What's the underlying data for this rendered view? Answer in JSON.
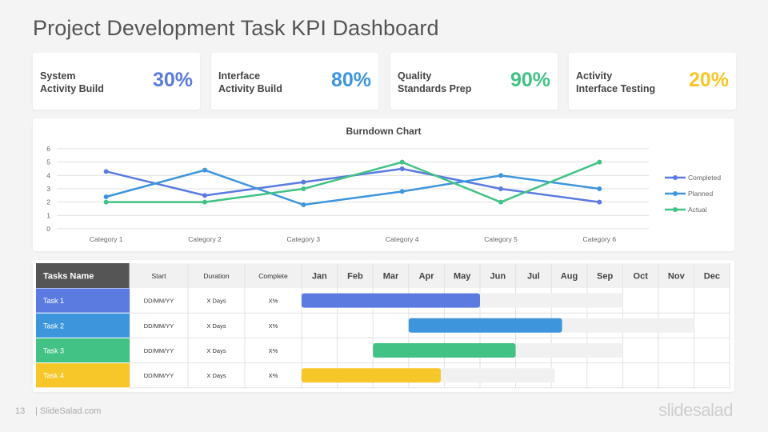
{
  "title": "Project Development Task KPI Dashboard",
  "kpis": [
    {
      "line1": "System",
      "line2": "Activity Build",
      "value": "30%",
      "color": "#5b7be0"
    },
    {
      "line1": "Interface",
      "line2": "Activity Build",
      "value": "80%",
      "color": "#3d95dc"
    },
    {
      "line1": "Quality",
      "line2": "Standards Prep",
      "value": "90%",
      "color": "#42c284"
    },
    {
      "line1": "Activity",
      "line2": "Interface Testing",
      "value": "20%",
      "color": "#f7c628"
    }
  ],
  "chart_data": {
    "type": "line",
    "title": "Burndown  Chart",
    "categories": [
      "Category 1",
      "Category 2",
      "Category 3",
      "Category 4",
      "Category 5",
      "Category 6"
    ],
    "ylim": [
      0,
      6
    ],
    "yticks": [
      "0",
      "1",
      "2",
      "3",
      "4",
      "5",
      "6"
    ],
    "grid": true,
    "legend_position": "right",
    "series": [
      {
        "name": "Completed",
        "values": [
          4.3,
          2.5,
          3.5,
          4.5,
          3,
          2
        ],
        "color": "#5b7be0"
      },
      {
        "name": "Planned",
        "values": [
          2.4,
          4.4,
          1.8,
          2.8,
          4,
          3
        ],
        "color": "#3d95dc"
      },
      {
        "name": "Actual",
        "values": [
          2,
          2,
          3,
          5,
          2,
          5
        ],
        "color": "#42c284"
      }
    ]
  },
  "gantt": {
    "headers": {
      "task": "Tasks Name",
      "start": "Start",
      "duration": "Duration",
      "complete": "Complete"
    },
    "months": [
      "Jan",
      "Feb",
      "Mar",
      "Apr",
      "May",
      "Jun",
      "Jul",
      "Aug",
      "Sep",
      "Oct",
      "Nov",
      "Dec"
    ],
    "tasks": [
      {
        "name": "Task 1",
        "start": "DD/MM/YY",
        "duration": "X Days",
        "complete": "X%",
        "color": "#5b7be0",
        "bar_start_month": 1,
        "bar_end_month": 5,
        "range_end_month": 9.0
      },
      {
        "name": "Task 2",
        "start": "DD/MM/YY",
        "duration": "X Days",
        "complete": "X%",
        "color": "#3d95dc",
        "bar_start_month": 4,
        "bar_end_month": 7.3,
        "range_end_month": 11
      },
      {
        "name": "Task 3",
        "start": "DD/MM/YY",
        "duration": "X Days",
        "complete": "X%",
        "color": "#42c284",
        "bar_start_month": 3,
        "bar_end_month": 6,
        "range_end_month": 9.0
      },
      {
        "name": "Task 4",
        "start": "DD/MM/YY",
        "duration": "X Days",
        "complete": "X%",
        "color": "#f7c628",
        "bar_start_month": 1,
        "bar_end_month": 3.9,
        "range_end_month": 7.1
      }
    ]
  },
  "footer": {
    "page": "13",
    "site": "| SlideSalad.com",
    "logo": "slidesalad"
  }
}
